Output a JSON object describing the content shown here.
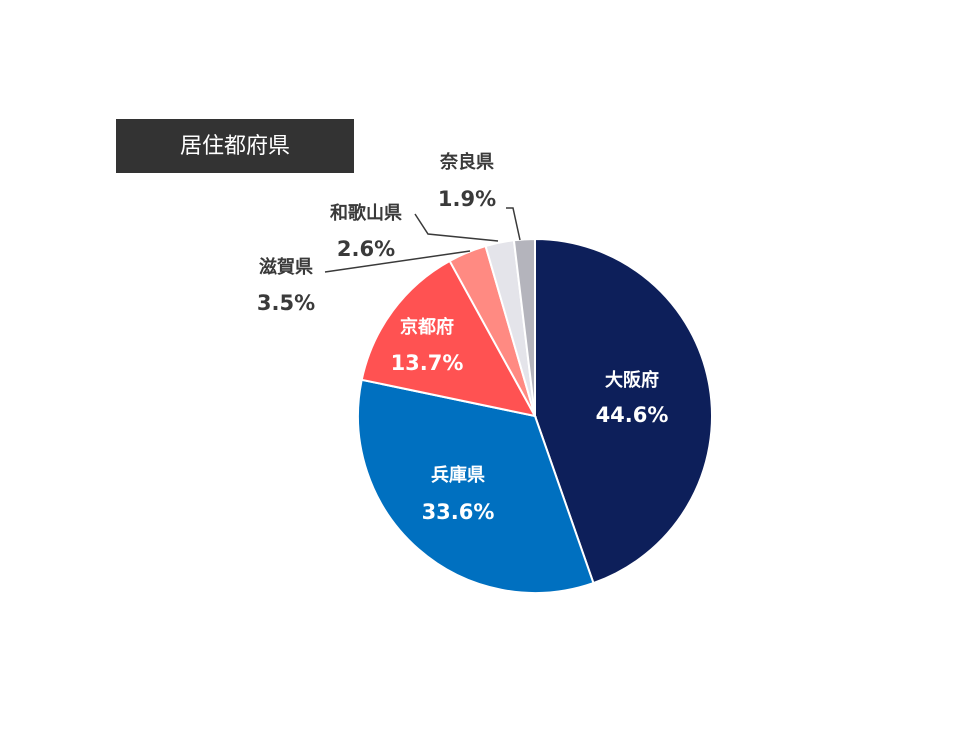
{
  "chart_data": {
    "type": "pie",
    "title": "居住都府県",
    "categories": [
      "大阪府",
      "兵庫県",
      "京都府",
      "滋賀県",
      "和歌山県",
      "奈良県"
    ],
    "values": [
      44.6,
      33.6,
      13.7,
      3.5,
      2.6,
      1.9
    ],
    "value_labels": [
      "44.6%",
      "33.6%",
      "13.7%",
      "3.5%",
      "2.6%",
      "1.9%"
    ],
    "colors": [
      "#0d1f5a",
      "#0070c0",
      "#ff5252",
      "#ff8a82",
      "#e4e4ea",
      "#b4b4bc"
    ]
  }
}
